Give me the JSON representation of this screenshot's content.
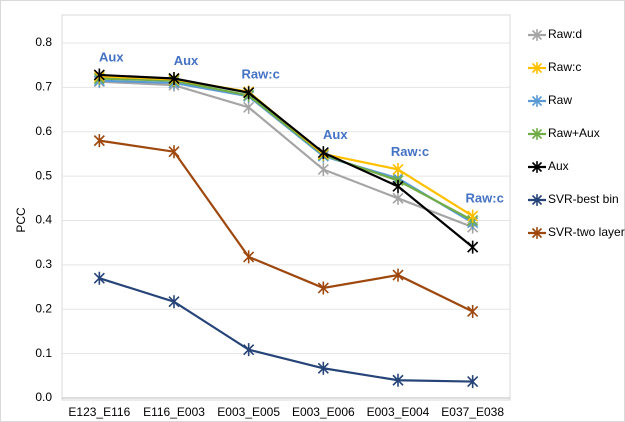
{
  "chart_data": {
    "type": "line",
    "ylabel": "PCC",
    "categories": [
      "E123_E116",
      "E116_E003",
      "E003_E005",
      "E003_E006",
      "E003_E004",
      "E037_E038"
    ],
    "annotations": [
      "Aux",
      "Aux",
      "Raw:c",
      "Aux",
      "Raw:c",
      "Raw:c"
    ],
    "series": [
      {
        "name": "Raw:d",
        "color": "#a5a5a5",
        "values": [
          0.713,
          0.705,
          0.655,
          0.515,
          0.45,
          0.385
        ]
      },
      {
        "name": "Raw:c",
        "color": "#ffc000",
        "values": [
          0.725,
          0.718,
          0.69,
          0.55,
          0.515,
          0.41
        ]
      },
      {
        "name": "Raw",
        "color": "#5b9bd5",
        "values": [
          0.715,
          0.71,
          0.68,
          0.545,
          0.495,
          0.395
        ]
      },
      {
        "name": "Raw+Aux",
        "color": "#70ad47",
        "values": [
          0.72,
          0.715,
          0.682,
          0.548,
          0.49,
          0.4
        ]
      },
      {
        "name": "Aux",
        "color": "#000000",
        "values": [
          0.728,
          0.72,
          0.688,
          0.553,
          0.477,
          0.34
        ]
      },
      {
        "name": "SVR-best bin",
        "color": "#264478",
        "values": [
          0.27,
          0.217,
          0.109,
          0.067,
          0.04,
          0.037
        ]
      },
      {
        "name": "SVR-two layer",
        "color": "#9e480e",
        "values": [
          0.58,
          0.555,
          0.318,
          0.248,
          0.277,
          0.195
        ]
      }
    ],
    "ylim": [
      0,
      0.8
    ],
    "yticks": [
      {
        "value": 0,
        "label": "0.0"
      },
      0.1,
      0.2,
      0.3,
      0.4,
      0.5,
      0.6,
      0.7,
      0.8
    ],
    "grid": true
  }
}
